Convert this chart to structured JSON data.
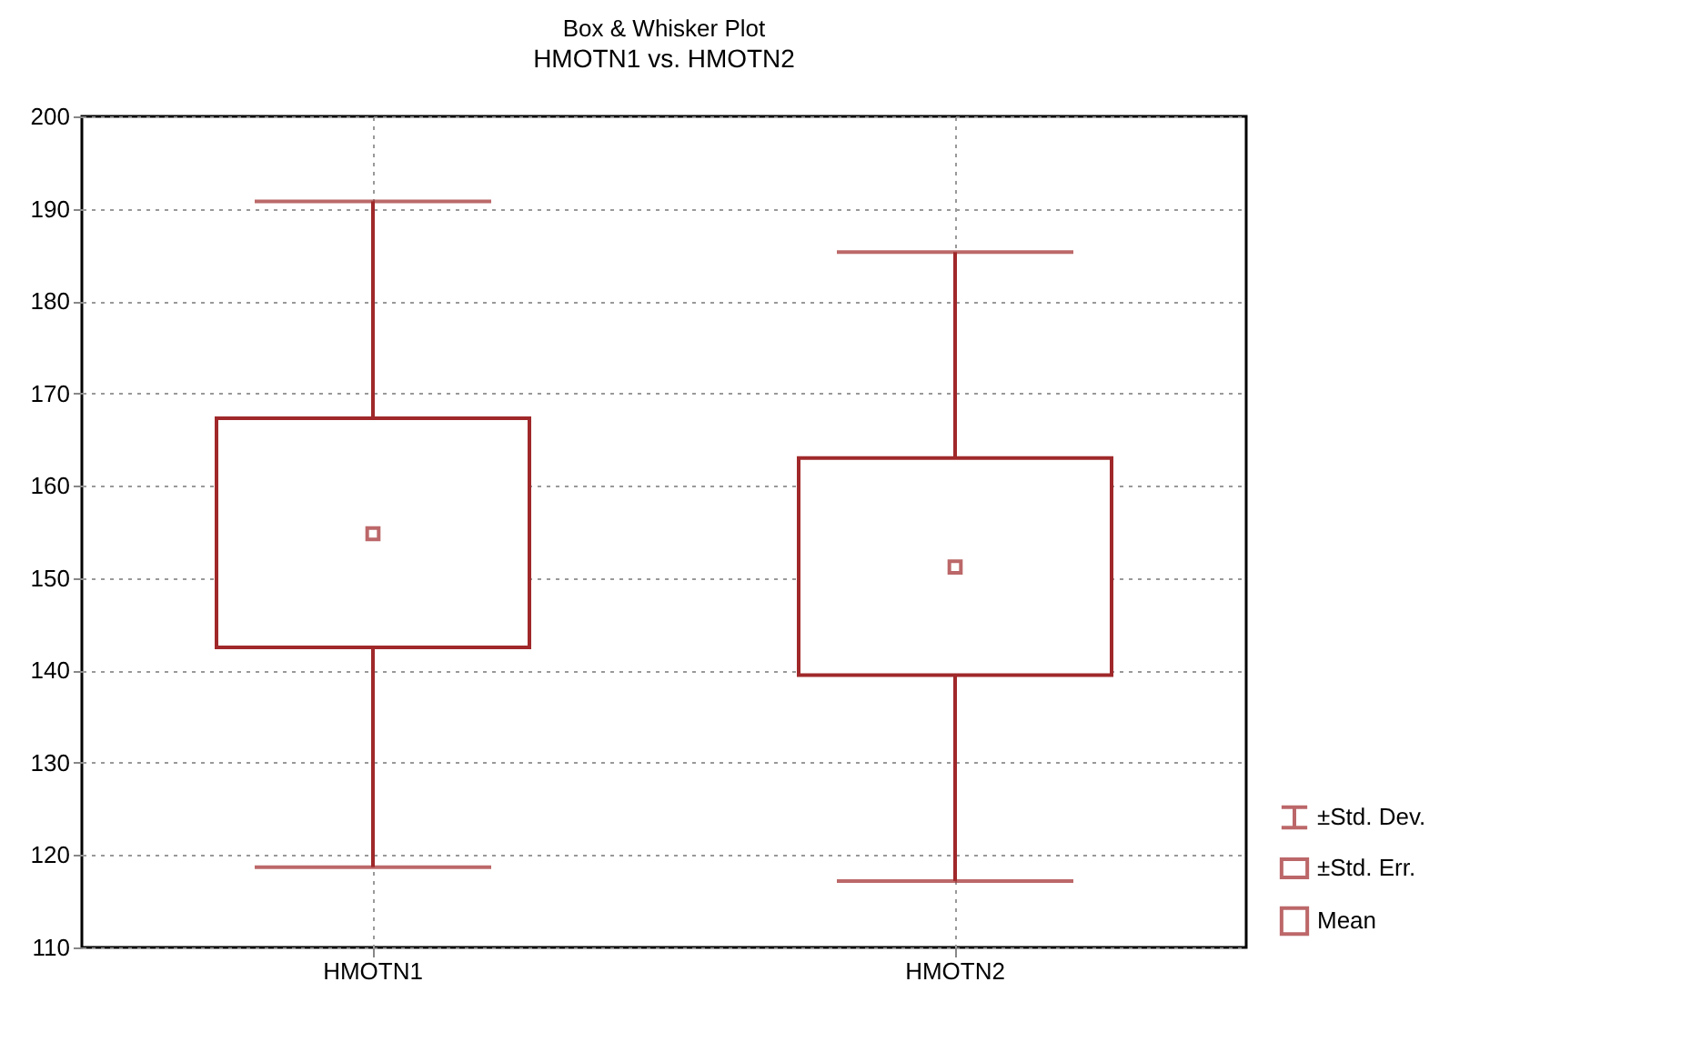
{
  "chart_data": {
    "type": "box",
    "title": "Box & Whisker Plot",
    "subtitle": "HMOTN1 vs. HMOTN2",
    "categories": [
      "HMOTN1",
      "HMOTN2"
    ],
    "boxes": [
      {
        "low": 118.7,
        "q1": 142.5,
        "q3": 167.3,
        "high": 190.8,
        "mean": 154.8
      },
      {
        "low": 117.2,
        "q1": 139.5,
        "q3": 163.0,
        "high": 185.3,
        "mean": 151.2
      }
    ],
    "color": "#a0282a",
    "ylim": [
      110,
      200
    ],
    "yticks": [
      110,
      120,
      130,
      140,
      150,
      160,
      170,
      180,
      190,
      200
    ],
    "grid": true,
    "annotations": [
      "±Std. Dev.",
      "±Std. Err.",
      "Mean"
    ]
  }
}
